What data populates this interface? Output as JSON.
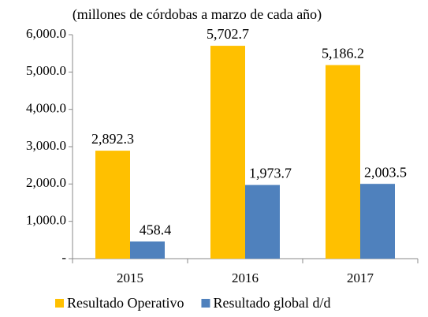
{
  "chart_data": {
    "type": "bar",
    "subtitle": "(millones de córdobas a marzo de cada año)",
    "categories": [
      "2015",
      "2016",
      "2017"
    ],
    "series": [
      {
        "name": "Resultado Operativo",
        "color": "#ffc000",
        "values": [
          2892.3,
          5702.7,
          5186.2
        ],
        "value_labels": [
          "2,892.3",
          "5,702.7",
          "5,186.2"
        ]
      },
      {
        "name": "Resultado global d/d",
        "color": "#4f81bd",
        "values": [
          458.4,
          1973.7,
          2003.5
        ],
        "value_labels": [
          "458.4",
          "1,973.7",
          "2,003.5"
        ]
      }
    ],
    "ylim": [
      0,
      6000
    ],
    "yticks": [
      {
        "value": 0,
        "label": "-"
      },
      {
        "value": 1000,
        "label": "1,000.0"
      },
      {
        "value": 2000,
        "label": "2,000.0"
      },
      {
        "value": 3000,
        "label": "3,000.0"
      },
      {
        "value": 4000,
        "label": "4,000.0"
      },
      {
        "value": 5000,
        "label": "5,000.0"
      },
      {
        "value": 6000,
        "label": "6,000.0"
      }
    ],
    "grid": false,
    "legend": "bottom"
  }
}
